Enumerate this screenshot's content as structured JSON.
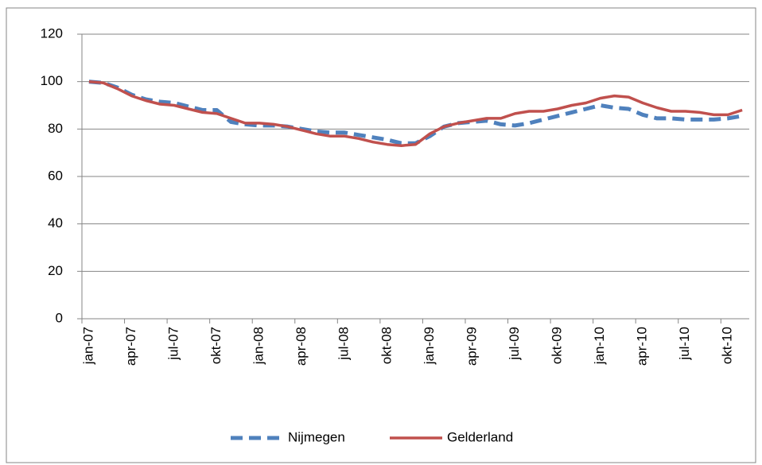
{
  "chart_data": {
    "type": "line",
    "categories": [
      "jan-07",
      null,
      null,
      "apr-07",
      null,
      null,
      "jul-07",
      null,
      null,
      "okt-07",
      null,
      null,
      "jan-08",
      null,
      null,
      "apr-08",
      null,
      null,
      "jul-08",
      null,
      null,
      "okt-08",
      null,
      null,
      "jan-09",
      null,
      null,
      "apr-09",
      null,
      null,
      "jul-09",
      null,
      null,
      "okt-09",
      null,
      null,
      "jan-10",
      null,
      null,
      "apr-10",
      null,
      null,
      "jul-10",
      null,
      null,
      "okt-10",
      null
    ],
    "series": [
      {
        "name": "Nijmegen",
        "color": "#4f81bd",
        "dashed": true,
        "values": [
          100,
          99.5,
          97.5,
          94.5,
          92.5,
          91.5,
          91,
          89.5,
          88,
          88,
          83,
          82,
          81.5,
          81.5,
          81,
          80,
          79,
          78.5,
          78.5,
          77.5,
          76.5,
          75.5,
          74,
          74,
          77,
          81,
          82.5,
          83,
          83.5,
          82,
          81.5,
          82.5,
          84,
          85.5,
          87,
          88.5,
          90,
          89,
          88.5,
          86,
          84.5,
          84.5,
          84,
          84,
          84,
          84.5,
          85.5
        ]
      },
      {
        "name": "Gelderland",
        "color": "#c0504d",
        "dashed": false,
        "values": [
          100,
          99.5,
          97,
          94,
          92,
          90.5,
          90,
          88.5,
          87,
          86.5,
          84.5,
          82.5,
          82.5,
          82,
          81,
          79.5,
          78,
          77,
          77,
          76,
          74.5,
          73.5,
          73,
          73.5,
          78,
          81,
          82.5,
          83.5,
          84.5,
          84.5,
          86.5,
          87.5,
          87.5,
          88.5,
          90,
          91,
          93,
          94,
          93.5,
          91,
          89,
          87.5,
          87.5,
          87,
          86,
          86,
          88
        ]
      }
    ],
    "ylim": [
      0,
      120
    ],
    "yticks": [
      0,
      20,
      40,
      60,
      80,
      100,
      120
    ],
    "grid": true,
    "legend": "bottom"
  }
}
